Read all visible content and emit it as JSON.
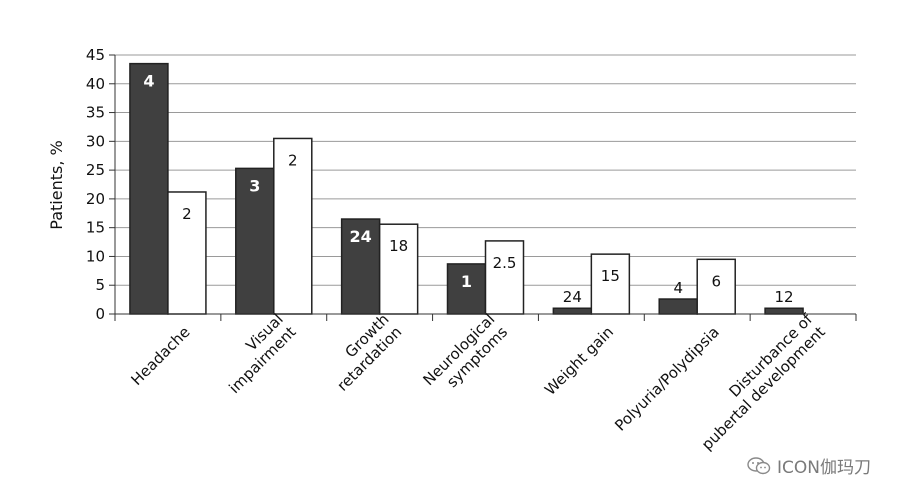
{
  "chart_data": {
    "type": "bar",
    "ylabel": "Patients, %",
    "ylim": [
      0,
      45
    ],
    "yticks": [
      0,
      5,
      10,
      15,
      20,
      25,
      30,
      35,
      40,
      45
    ],
    "grid": true,
    "categories": [
      [
        "Headache"
      ],
      [
        "Visual",
        "impairment"
      ],
      [
        "Growth",
        "retardation"
      ],
      [
        "Neurological",
        "symptoms"
      ],
      [
        "Weight gain"
      ],
      [
        "Polyuria/Polydipsia"
      ],
      [
        "Disturbance of",
        "pubertal development"
      ]
    ],
    "series": [
      {
        "color": "#404040",
        "values": [
          43.5,
          25.3,
          16.5,
          8.7,
          1.0,
          2.6,
          1.0
        ],
        "labels": [
          "4",
          "3",
          "24",
          "1",
          "24",
          "4",
          "12"
        ]
      },
      {
        "color": "#ffffff",
        "values": [
          21.2,
          30.5,
          15.6,
          12.7,
          10.4,
          9.5,
          null
        ],
        "labels": [
          "2",
          "2",
          "18",
          "2.5",
          "15",
          "6",
          null
        ]
      }
    ]
  },
  "watermark": {
    "text": "ICON伽玛刀",
    "icon": "wechat-icon"
  }
}
